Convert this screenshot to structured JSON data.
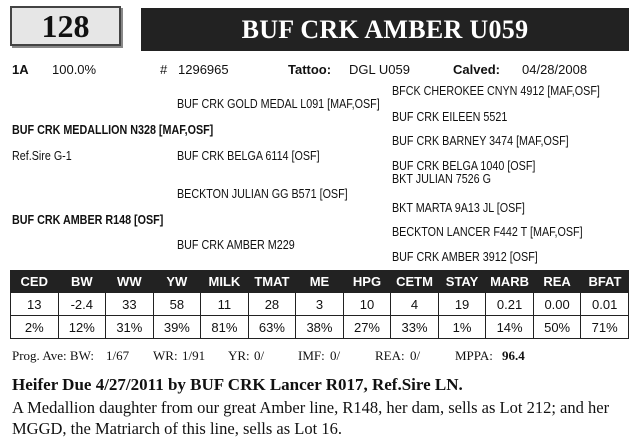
{
  "lot": "128",
  "animal_name": "BUF CRK AMBER U059",
  "info": {
    "code": "1A",
    "percent": "100.0%",
    "reg_label": "#",
    "reg_number": "1296965",
    "tattoo_label": "Tattoo:",
    "tattoo": "DGL U059",
    "calved_label": "Calved:",
    "calved": "04/28/2008"
  },
  "pedigree": {
    "sire": "BUF CRK MEDALLION N328 [MAF,OSF]",
    "ref_sire": "Ref.Sire G-1",
    "sire_sire": "BUF CRK GOLD MEDAL L091 [MAF,OSF]",
    "sire_dam": "BUF CRK BELGA 6114  [OSF]",
    "sss": "BFCK CHEROKEE CNYN 4912 [MAF,OSF]",
    "ssd": "BUF CRK EILEEN  5521",
    "sds": "BUF CRK BARNEY 3474 [MAF,OSF]",
    "sdd": "BUF CRK BELGA 1040  [OSF]",
    "dam": "BUF CRK AMBER R148 [OSF]",
    "dam_sire": "BECKTON JULIAN GG B571 [OSF]",
    "dam_dam": "BUF CRK AMBER M229",
    "dss": "BKT JULIAN 7526 G",
    "dsd": "BKT MARTA 9A13 JL [OSF]",
    "dds": "BECKTON LANCER F442 T [MAF,OSF]",
    "ddd": "BUF CRK AMBER 3912 [OSF]"
  },
  "epd": {
    "headers": [
      "CED",
      "BW",
      "WW",
      "YW",
      "MILK",
      "TMAT",
      "ME",
      "HPG",
      "CETM",
      "STAY",
      "MARB",
      "REA",
      "BFAT"
    ],
    "values": [
      "13",
      "-2.4",
      "33",
      "58",
      "11",
      "28",
      "3",
      "10",
      "4",
      "19",
      "0.21",
      "0.00",
      "0.01"
    ],
    "percentiles": [
      "2%",
      "12%",
      "31%",
      "39%",
      "81%",
      "63%",
      "38%",
      "27%",
      "33%",
      "1%",
      "14%",
      "50%",
      "71%"
    ]
  },
  "progeny": {
    "bw_label": "Prog. Ave: BW:",
    "bw": "1/67",
    "wr_label": "WR:",
    "wr": "1/91",
    "yr_label": "YR:",
    "yr": "0/",
    "imf_label": "IMF:",
    "imf": "0/",
    "rea_label": "REA:",
    "rea": "0/",
    "mppa_label": "MPPA:",
    "mppa": "96.4"
  },
  "due_line": "Heifer Due 4/27/2011 by BUF CRK Lancer R017, Ref.Sire LN.",
  "description": "A Medallion daughter from our great Amber line, R148, her dam, sells as Lot 212; and her MGGD, the Matriarch of this line, sells as Lot 16."
}
